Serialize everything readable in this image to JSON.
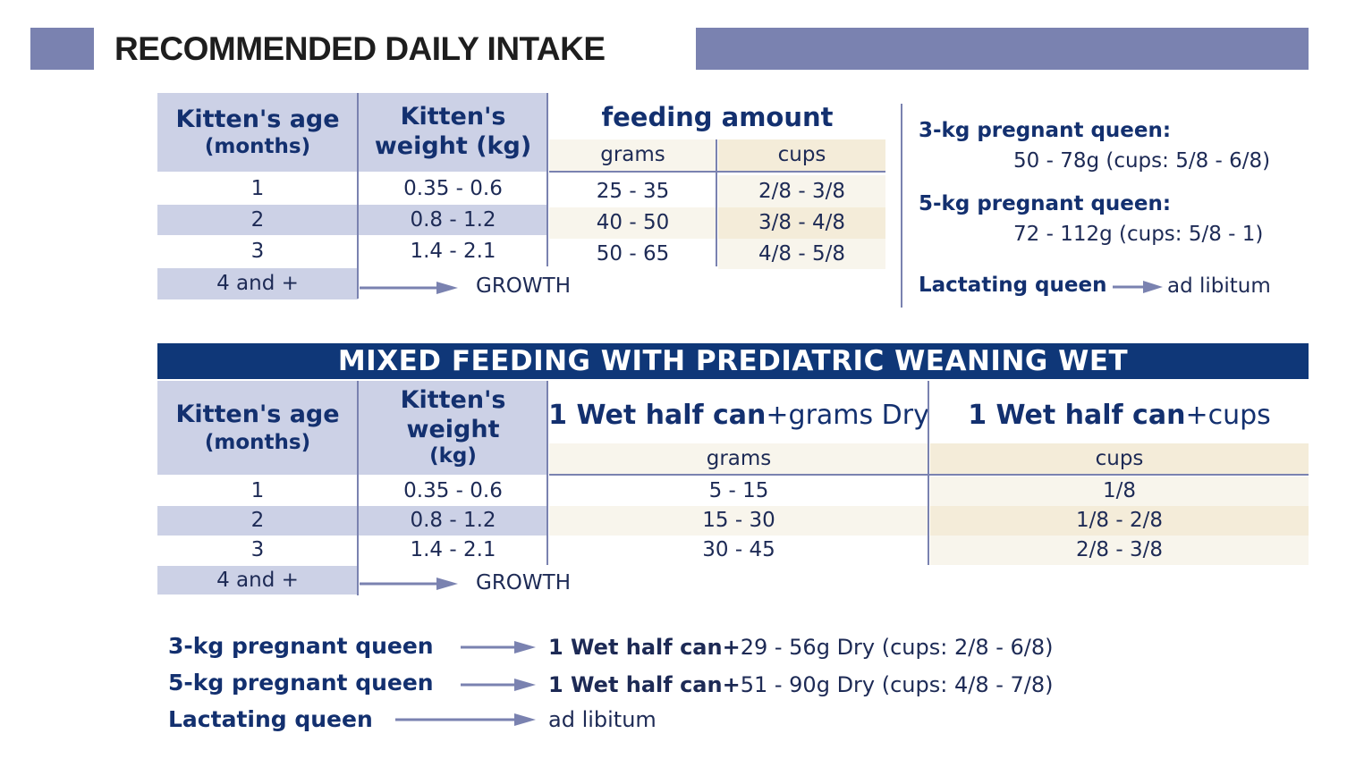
{
  "title": "RECOMMENDED DAILY INTAKE",
  "table1": {
    "age_header": "Kitten's age",
    "age_header_sub": "(months)",
    "weight_header": "Kitten's",
    "weight_header_sub": "weight (kg)",
    "feeding_header": "feeding amount",
    "grams_header": "grams",
    "cups_header": "cups",
    "rows": [
      {
        "age": "1",
        "weight": "0.35 - 0.6",
        "grams": "25 - 35",
        "cups": "2/8 - 3/8"
      },
      {
        "age": "2",
        "weight": "0.8 - 1.2",
        "grams": "40 - 50",
        "cups": "3/8 - 4/8"
      },
      {
        "age": "3",
        "weight": "1.4 - 2.1",
        "grams": "50 - 65",
        "cups": "4/8 - 5/8"
      }
    ],
    "last_age": "4 and +",
    "growth": "GROWTH"
  },
  "queens": {
    "q3_label": "3-kg pregnant queen:",
    "q3_value": "50 - 78g (cups: 5/8 - 6/8)",
    "q5_label": "5-kg pregnant queen:",
    "q5_value": "72 - 112g (cups: 5/8 - 1)",
    "lact_label": "Lactating queen",
    "lact_value": "ad libitum"
  },
  "table2": {
    "band": "MIXED FEEDING WITH PREDIATRIC WEANING WET",
    "age_header": "Kitten's age",
    "age_header_sub": "(months)",
    "weight_header_1": "Kitten's",
    "weight_header_2": "weight",
    "weight_header_3": "(kg)",
    "wet_label": "1 Wet half can",
    "grams_dry_suffix": "+grams Dry",
    "cups_suffix": "+cups",
    "grams_header": "grams",
    "cups_header": "cups",
    "rows": [
      {
        "age": "1",
        "weight": "0.35 - 0.6",
        "grams": "5 - 15",
        "cups": "1/8"
      },
      {
        "age": "2",
        "weight": "0.8 - 1.2",
        "grams": "15 - 30",
        "cups": "1/8 - 2/8"
      },
      {
        "age": "3",
        "weight": "1.4 - 2.1",
        "grams": "30 - 45",
        "cups": "2/8 - 3/8"
      }
    ],
    "last_age": "4 and +",
    "growth": "GROWTH"
  },
  "bottom": {
    "q3_label": "3-kg pregnant queen",
    "q3_bold": "1 Wet half can+",
    "q3_value": "29 - 56g Dry (cups: 2/8 - 6/8)",
    "q5_label": "5-kg pregnant queen",
    "q5_bold": "1 Wet half can+",
    "q5_value": "51 - 90g Dry (cups: 4/8 - 7/8)",
    "lact_label": "Lactating queen",
    "lact_value": "ad libitum"
  },
  "colors": {
    "bar": "#7a82b0",
    "navy": "#0f3778",
    "lavender": "#ccd1e6",
    "cream": "#f4ecd9",
    "text_dark_blue": "#13306f"
  }
}
